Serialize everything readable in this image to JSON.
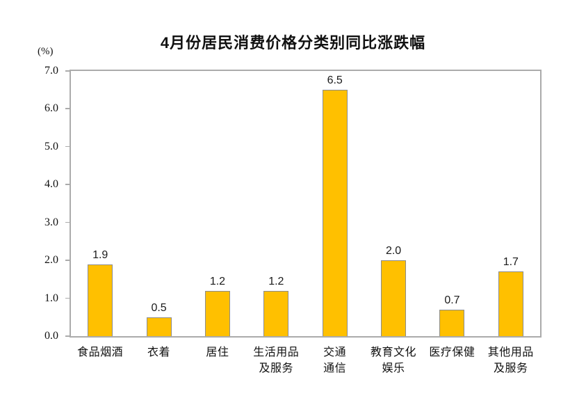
{
  "header": {
    "title": "4月份居民消费价格分类别同比涨跌幅"
  },
  "chart_data": {
    "type": "bar",
    "title": "4月份居民消费价格分类别同比涨跌幅",
    "ylabel": "(%)",
    "xlabel": "",
    "categories": [
      "食品烟酒",
      "衣着",
      "居住",
      "生活用品及服务",
      "交通通信",
      "教育文化娱乐",
      "医疗保健",
      "其他用品及服务"
    ],
    "category_lines": [
      [
        "食品烟酒"
      ],
      [
        "衣着"
      ],
      [
        "居住"
      ],
      [
        "生活用品",
        "及服务"
      ],
      [
        "交通",
        "通信"
      ],
      [
        "教育文化",
        "娱乐"
      ],
      [
        "医疗保健"
      ],
      [
        "其他用品",
        "及服务"
      ]
    ],
    "values": [
      1.9,
      0.5,
      1.2,
      1.2,
      6.5,
      2.0,
      0.7,
      1.7
    ],
    "value_labels": [
      "1.9",
      "0.5",
      "1.2",
      "1.2",
      "6.5",
      "2.0",
      "0.7",
      "1.7"
    ],
    "ylim": [
      0.0,
      7.0
    ],
    "ytick_step": 1.0,
    "yticks": [
      "7.0",
      "6.0",
      "5.0",
      "4.0",
      "3.0",
      "2.0",
      "1.0",
      "0.0"
    ],
    "grid": false,
    "legend_position": "none",
    "colors": {
      "bar_fill": "#FFC000",
      "bar_border": "#8C8C8C",
      "axis_border": "#ABABAB",
      "text": "#111111",
      "background": "#FFFFFF"
    }
  }
}
